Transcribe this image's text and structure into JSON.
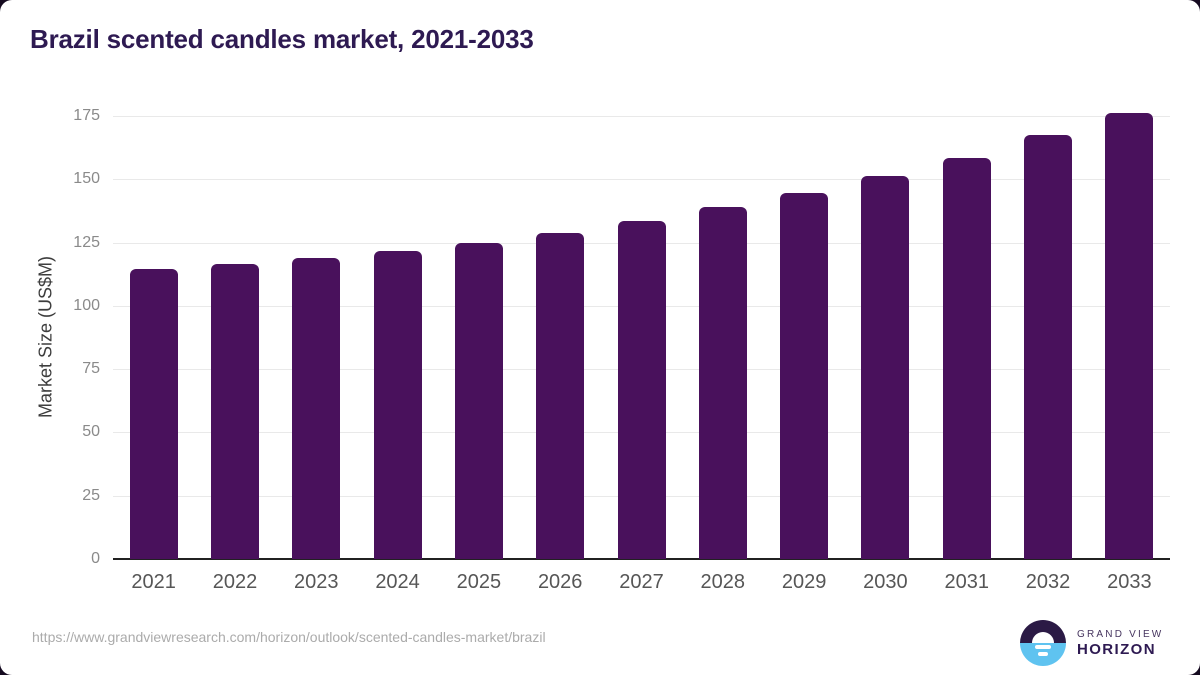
{
  "card": {
    "title": "Brazil scented candles market, 2021-2033",
    "source_url": "https://www.grandviewresearch.com/horizon/outlook/scented-candles-market/brazil"
  },
  "logo": {
    "name": "grand-view-horizon",
    "line1": "GRAND VIEW",
    "line2": "HORIZON"
  },
  "colors": {
    "bar": "#49115c",
    "title_text": "#2e1a52",
    "grid": "#e9e9e9",
    "axis_line": "#212121",
    "y_tick_text": "#8a8a8a",
    "x_tick_text": "#565656",
    "url_text": "#ababab",
    "logo_purple": "#2b1a45",
    "logo_blue": "#5fc3f0"
  },
  "chart_data": {
    "type": "bar",
    "title": "Brazil scented candles market, 2021-2033",
    "categories": [
      "2021",
      "2022",
      "2023",
      "2024",
      "2025",
      "2026",
      "2027",
      "2028",
      "2029",
      "2030",
      "2031",
      "2032",
      "2033"
    ],
    "values": [
      114.4,
      116.6,
      118.9,
      121.7,
      124.7,
      128.8,
      133.7,
      138.9,
      144.6,
      151.2,
      158.4,
      167.4,
      176.2
    ],
    "xlabel": "",
    "ylabel": "Market Size (US$M)",
    "yticks": [
      0,
      25,
      50,
      75,
      100,
      125,
      150,
      175
    ],
    "ylim": [
      0,
      179
    ],
    "grid": true,
    "legend": false,
    "bar_color": "#49115c"
  }
}
